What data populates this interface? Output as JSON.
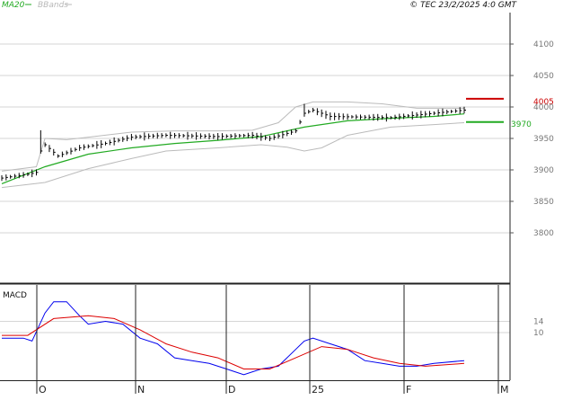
{
  "header": {
    "legend_ma": "MA20",
    "legend_bbands": "BBands",
    "copyright": "© TEC 23/2/2025 4:0 GMT"
  },
  "colors": {
    "ma": "#22aa22",
    "bbands": "#bbbbbb",
    "bars": "#000000",
    "macd": "#0000ee",
    "signal": "#dd0000",
    "marker_high": "#cc0000",
    "marker_low": "#22aa22",
    "grid": "#d6d6d6"
  },
  "chart_data": [
    {
      "type": "ohlc",
      "title": "",
      "ylim": [
        3720,
        4150
      ],
      "y_ticks": [
        3800,
        3850,
        3900,
        3950,
        4000,
        4050,
        4100
      ],
      "y_tick_labels": [
        "3800",
        "3850",
        "3900",
        "3950",
        "4000",
        "4050",
        "4100"
      ],
      "x_ticks": [
        "O",
        "N",
        "D",
        "25",
        "F",
        "M"
      ],
      "grid": true,
      "legend": [
        "MA20",
        "BBands"
      ],
      "markers": [
        {
          "label": "4005",
          "value": 4013,
          "style": "red"
        },
        {
          "label": "3970",
          "value": 3976,
          "style": "green"
        }
      ],
      "price_path": [
        {
          "t": 0,
          "v": 3887
        },
        {
          "t": 6,
          "v": 3893
        },
        {
          "t": 8,
          "v": 3896
        },
        {
          "t": 9,
          "v": 3930
        },
        {
          "t": 10,
          "v": 3940
        },
        {
          "t": 13,
          "v": 3922
        },
        {
          "t": 18,
          "v": 3935
        },
        {
          "t": 24,
          "v": 3942
        },
        {
          "t": 30,
          "v": 3952
        },
        {
          "t": 38,
          "v": 3955
        },
        {
          "t": 50,
          "v": 3953
        },
        {
          "t": 58,
          "v": 3955
        },
        {
          "t": 62,
          "v": 3950
        },
        {
          "t": 68,
          "v": 3962
        },
        {
          "t": 70,
          "v": 3990
        },
        {
          "t": 72,
          "v": 3995
        },
        {
          "t": 76,
          "v": 3985
        },
        {
          "t": 90,
          "v": 3983
        },
        {
          "t": 100,
          "v": 3990
        },
        {
          "t": 107,
          "v": 3995
        }
      ],
      "ma_path": [
        {
          "t": 0,
          "v": 3878
        },
        {
          "t": 10,
          "v": 3905
        },
        {
          "t": 20,
          "v": 3925
        },
        {
          "t": 30,
          "v": 3935
        },
        {
          "t": 40,
          "v": 3942
        },
        {
          "t": 50,
          "v": 3947
        },
        {
          "t": 60,
          "v": 3953
        },
        {
          "t": 70,
          "v": 3968
        },
        {
          "t": 80,
          "v": 3978
        },
        {
          "t": 90,
          "v": 3982
        },
        {
          "t": 100,
          "v": 3985
        },
        {
          "t": 107,
          "v": 3989
        }
      ],
      "bb_upper_path": [
        {
          "t": 0,
          "v": 3898
        },
        {
          "t": 8,
          "v": 3905
        },
        {
          "t": 10,
          "v": 3950
        },
        {
          "t": 15,
          "v": 3948
        },
        {
          "t": 20,
          "v": 3952
        },
        {
          "t": 30,
          "v": 3960
        },
        {
          "t": 40,
          "v": 3962
        },
        {
          "t": 50,
          "v": 3962
        },
        {
          "t": 58,
          "v": 3963
        },
        {
          "t": 64,
          "v": 3975
        },
        {
          "t": 68,
          "v": 4000
        },
        {
          "t": 72,
          "v": 4008
        },
        {
          "t": 80,
          "v": 4008
        },
        {
          "t": 88,
          "v": 4005
        },
        {
          "t": 96,
          "v": 3998
        },
        {
          "t": 107,
          "v": 3998
        }
      ],
      "bb_lower_path": [
        {
          "t": 0,
          "v": 3872
        },
        {
          "t": 10,
          "v": 3880
        },
        {
          "t": 20,
          "v": 3902
        },
        {
          "t": 30,
          "v": 3918
        },
        {
          "t": 38,
          "v": 3930
        },
        {
          "t": 50,
          "v": 3935
        },
        {
          "t": 60,
          "v": 3940
        },
        {
          "t": 66,
          "v": 3936
        },
        {
          "t": 70,
          "v": 3930
        },
        {
          "t": 74,
          "v": 3935
        },
        {
          "t": 80,
          "v": 3955
        },
        {
          "t": 90,
          "v": 3968
        },
        {
          "t": 100,
          "v": 3972
        },
        {
          "t": 107,
          "v": 3975
        }
      ]
    },
    {
      "type": "line",
      "title": "MACD",
      "ylim": [
        -7,
        27
      ],
      "y_ticks": [
        14,
        10
      ],
      "y_tick_labels": [
        "14",
        "10"
      ],
      "grid": true,
      "series": [
        {
          "name": "",
          "color": "macd",
          "path": [
            {
              "t": 0,
              "v": 8
            },
            {
              "t": 5,
              "v": 8
            },
            {
              "t": 7,
              "v": 7
            },
            {
              "t": 10,
              "v": 17
            },
            {
              "t": 12,
              "v": 21
            },
            {
              "t": 15,
              "v": 21
            },
            {
              "t": 18,
              "v": 16
            },
            {
              "t": 20,
              "v": 13
            },
            {
              "t": 24,
              "v": 14
            },
            {
              "t": 28,
              "v": 13
            },
            {
              "t": 32,
              "v": 8
            },
            {
              "t": 36,
              "v": 6
            },
            {
              "t": 40,
              "v": 1
            },
            {
              "t": 44,
              "v": 0
            },
            {
              "t": 48,
              "v": -1
            },
            {
              "t": 52,
              "v": -3
            },
            {
              "t": 56,
              "v": -5
            },
            {
              "t": 60,
              "v": -3
            },
            {
              "t": 64,
              "v": -2
            },
            {
              "t": 68,
              "v": 4
            },
            {
              "t": 70,
              "v": 7
            },
            {
              "t": 72,
              "v": 8
            },
            {
              "t": 76,
              "v": 6
            },
            {
              "t": 80,
              "v": 4
            },
            {
              "t": 84,
              "v": 0
            },
            {
              "t": 88,
              "v": -1
            },
            {
              "t": 92,
              "v": -2
            },
            {
              "t": 96,
              "v": -2
            },
            {
              "t": 100,
              "v": -1
            },
            {
              "t": 107,
              "v": 0
            }
          ]
        },
        {
          "name": "",
          "color": "signal",
          "path": [
            {
              "t": 0,
              "v": 9
            },
            {
              "t": 6,
              "v": 9
            },
            {
              "t": 12,
              "v": 15
            },
            {
              "t": 20,
              "v": 16
            },
            {
              "t": 26,
              "v": 15
            },
            {
              "t": 32,
              "v": 11
            },
            {
              "t": 38,
              "v": 6
            },
            {
              "t": 44,
              "v": 3
            },
            {
              "t": 50,
              "v": 1
            },
            {
              "t": 56,
              "v": -3
            },
            {
              "t": 62,
              "v": -3
            },
            {
              "t": 68,
              "v": 1
            },
            {
              "t": 74,
              "v": 5
            },
            {
              "t": 80,
              "v": 4
            },
            {
              "t": 86,
              "v": 1
            },
            {
              "t": 92,
              "v": -1
            },
            {
              "t": 98,
              "v": -2
            },
            {
              "t": 107,
              "v": -1
            }
          ]
        }
      ]
    }
  ]
}
